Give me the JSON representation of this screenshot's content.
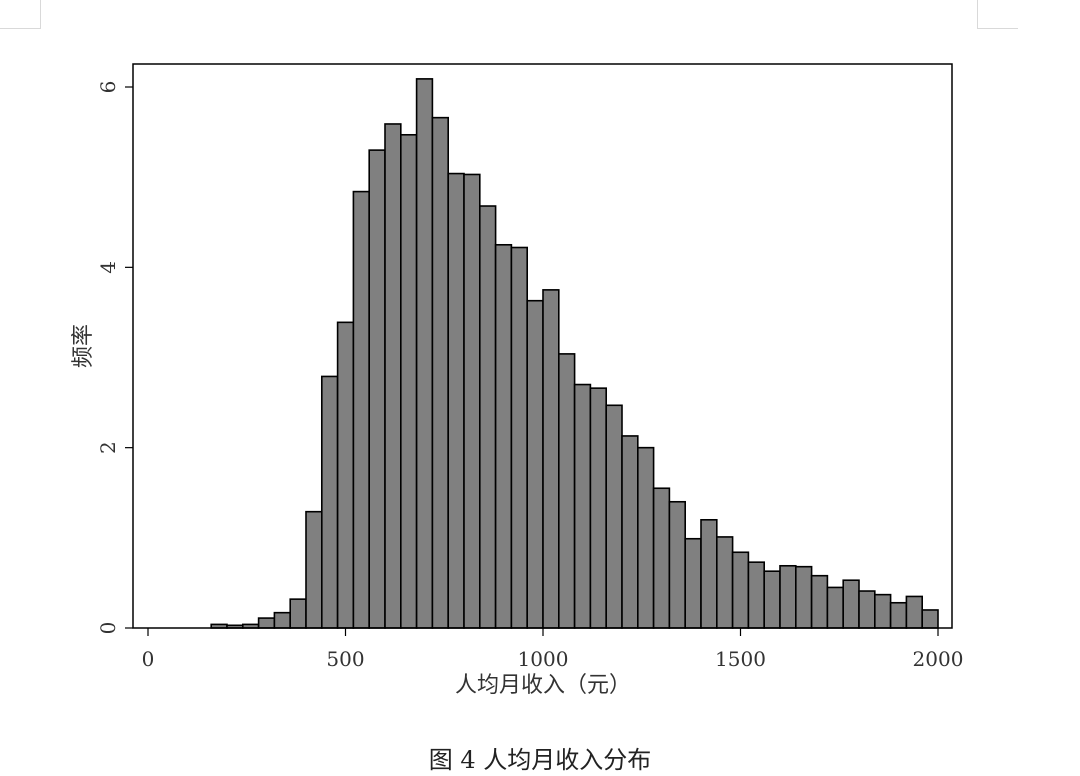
{
  "chart_data": {
    "type": "bar",
    "subtype": "histogram",
    "xlabel": "人均月收入（元）",
    "ylabel": "频率",
    "xlim": [
      0,
      2000
    ],
    "ylim": [
      0,
      6
    ],
    "x_ticks": [
      "0",
      "500",
      "1000",
      "1500",
      "2000"
    ],
    "y_ticks": [
      "0",
      "2",
      "4",
      "6"
    ],
    "bin_width": 40,
    "bin_starts": [
      160,
      200,
      240,
      280,
      320,
      360,
      400,
      440,
      480,
      520,
      560,
      600,
      640,
      680,
      720,
      760,
      800,
      840,
      880,
      920,
      960,
      1000,
      1040,
      1080,
      1120,
      1160,
      1200,
      1240,
      1280,
      1320,
      1360,
      1400,
      1440,
      1480,
      1520,
      1560,
      1600,
      1640,
      1680,
      1720,
      1760,
      1800,
      1840,
      1880,
      1920,
      1960
    ],
    "values": [
      0.04,
      0.03,
      0.04,
      0.11,
      0.17,
      0.32,
      1.29,
      2.79,
      3.39,
      4.84,
      5.3,
      5.59,
      5.47,
      6.09,
      5.66,
      5.04,
      5.03,
      4.68,
      4.25,
      4.22,
      3.63,
      3.75,
      3.04,
      2.7,
      2.66,
      2.47,
      2.13,
      2.0,
      1.55,
      1.4,
      0.99,
      1.2,
      1.01,
      0.84,
      0.73,
      0.63,
      0.69,
      0.68,
      0.58,
      0.45,
      0.53,
      0.41,
      0.37,
      0.28,
      0.35,
      0.2
    ],
    "grid": false,
    "colors": {
      "bar_fill": "#808080",
      "bar_stroke": "#000000",
      "axis": "#000000",
      "text": "#333333"
    }
  },
  "caption": "图 4  人均月收入分布"
}
